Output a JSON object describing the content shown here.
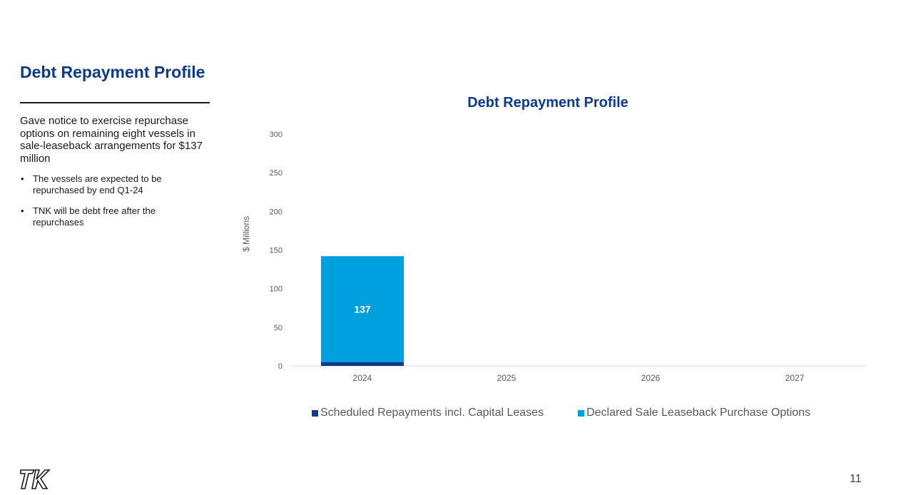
{
  "slide": {
    "title": "Debt Repayment Profile",
    "intro": "Gave notice to exercise repurchase options on remaining eight vessels in sale-leaseback arrangements for $137 million",
    "bullets": [
      "The vessels are expected to be repurchased by end Q1-24",
      "TNK will be debt free after the repurchases"
    ],
    "page_number": "11",
    "logo_icon": "tk-logo-icon"
  },
  "colors": {
    "title_blue": "#0d3a8e",
    "scheduled": "#0d3a8e",
    "declared": "#00a0df"
  },
  "chart_data": {
    "type": "bar",
    "stacked": true,
    "title": "Debt Repayment Profile",
    "xlabel": "",
    "ylabel": "$ Millions",
    "ylim": [
      0,
      300
    ],
    "yticks": [
      "0",
      "50",
      "100",
      "150",
      "200",
      "250",
      "300"
    ],
    "categories": [
      "2024",
      "2025",
      "2026",
      "2027"
    ],
    "series": [
      {
        "name": "Scheduled Repayments incl. Capital Leases",
        "color": "#0d3a8e",
        "values": [
          5,
          0,
          0,
          0
        ]
      },
      {
        "name": "Declared Sale Leaseback Purchase Options",
        "color": "#00a0df",
        "values": [
          137,
          0,
          0,
          0
        ]
      }
    ],
    "grid": false,
    "legend": "bottom"
  }
}
